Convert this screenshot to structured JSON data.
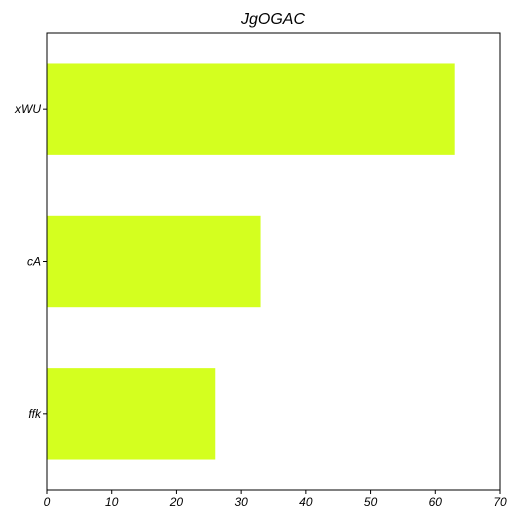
{
  "chart_data": {
    "type": "bar",
    "orientation": "horizontal",
    "title": "JgOGAC",
    "xlabel": "",
    "ylabel": "",
    "categories": [
      "xWU",
      "cA",
      "ffk"
    ],
    "values": [
      63,
      33,
      26
    ],
    "xlim": [
      0,
      70
    ],
    "xticks": [
      0,
      10,
      20,
      30,
      40,
      50,
      60,
      70
    ],
    "grid": false,
    "legend": "none",
    "bar_color": "#d4ff1f"
  }
}
